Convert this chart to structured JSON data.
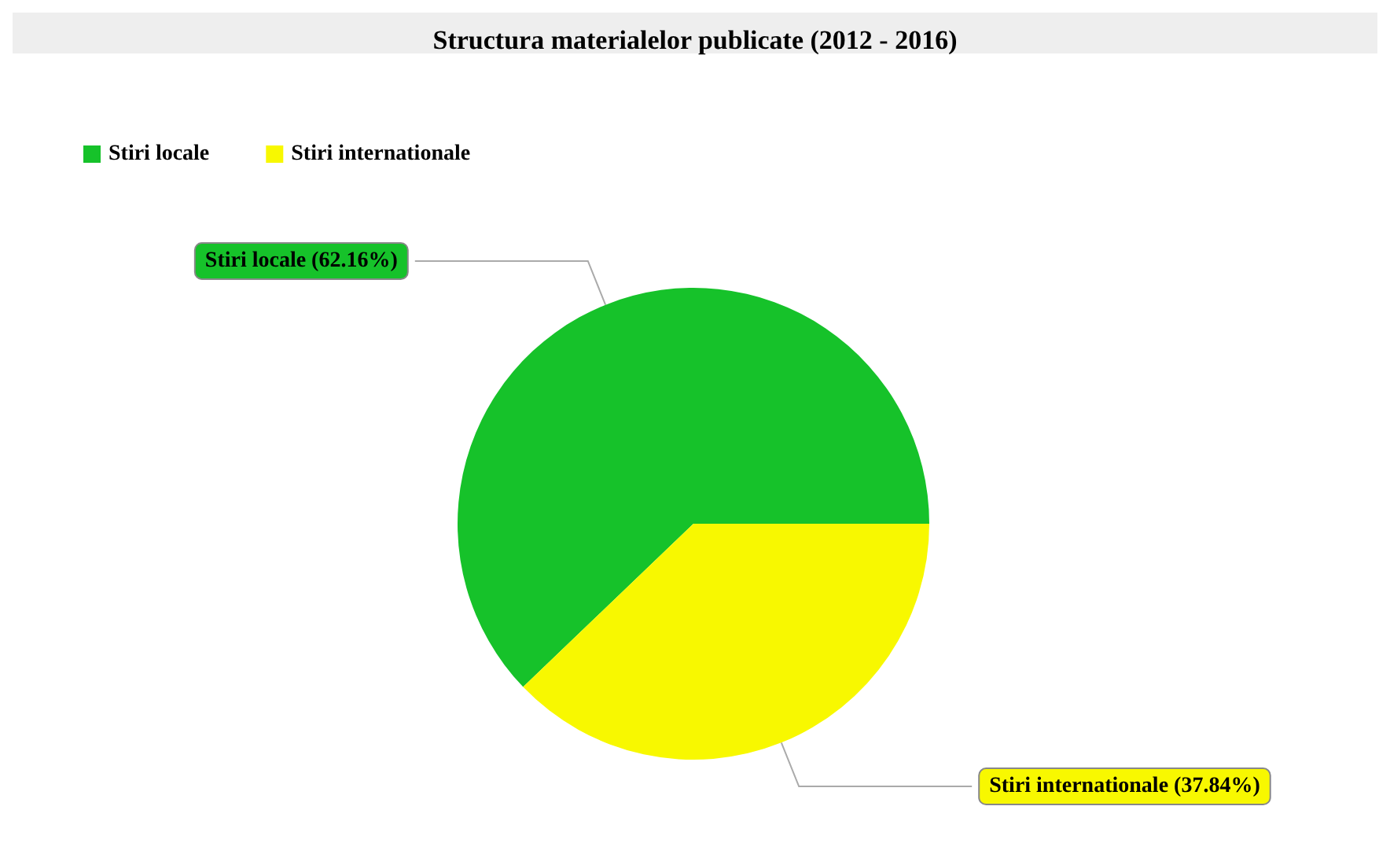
{
  "chart_data": {
    "type": "pie",
    "title": "Structura materialelor publicate (2012 - 2016)",
    "categories": [
      "Stiri locale",
      "Stiri internationale"
    ],
    "values": [
      62.16,
      37.84
    ],
    "colors": [
      "#16c22a",
      "#f8f800"
    ],
    "value_labels": [
      "Stiri locale (62.16%)",
      "Stiri internationale (37.84%)"
    ],
    "legend": "top left"
  }
}
